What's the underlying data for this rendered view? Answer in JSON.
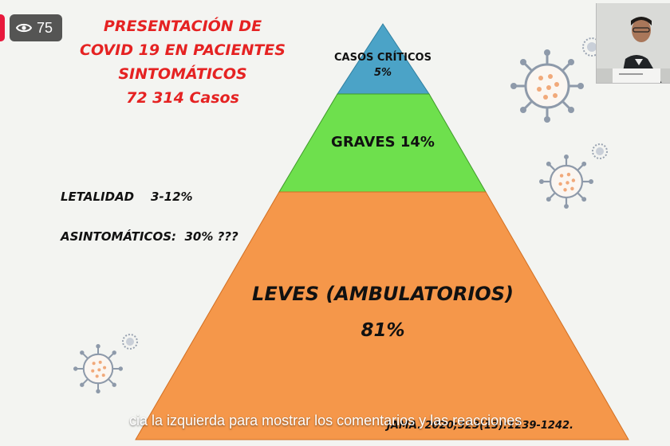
{
  "slide": {
    "title_lines": [
      "PRESENTACIÓN DE",
      "COVID 19 EN PACIENTES",
      "SINTOMÁTICOS",
      "72 314 Casos"
    ],
    "letalidad": "LETALIDAD    3-12%",
    "asintomaticos": "ASINTOMÁTICOS:  30% ???",
    "pyramid": {
      "critical_line1": "CASOS CRÍTICOS",
      "critical_line2": "5%",
      "graves": "GRAVES 14%",
      "leves": "LEVES (AMBULATORIOS)",
      "leves_pct": "81%"
    },
    "citation": "JAMA. 2020;323(13):1239-1242.",
    "colors": {
      "title": "#e52222",
      "critical": "#4ba3c7",
      "graves": "#6ee04d",
      "leves": "#f5974a"
    }
  },
  "overlay": {
    "views_icon": "eye-icon",
    "views_count": "75",
    "comments_hint": "cia la izquierda para mostrar los comentarios y las reacciones"
  }
}
